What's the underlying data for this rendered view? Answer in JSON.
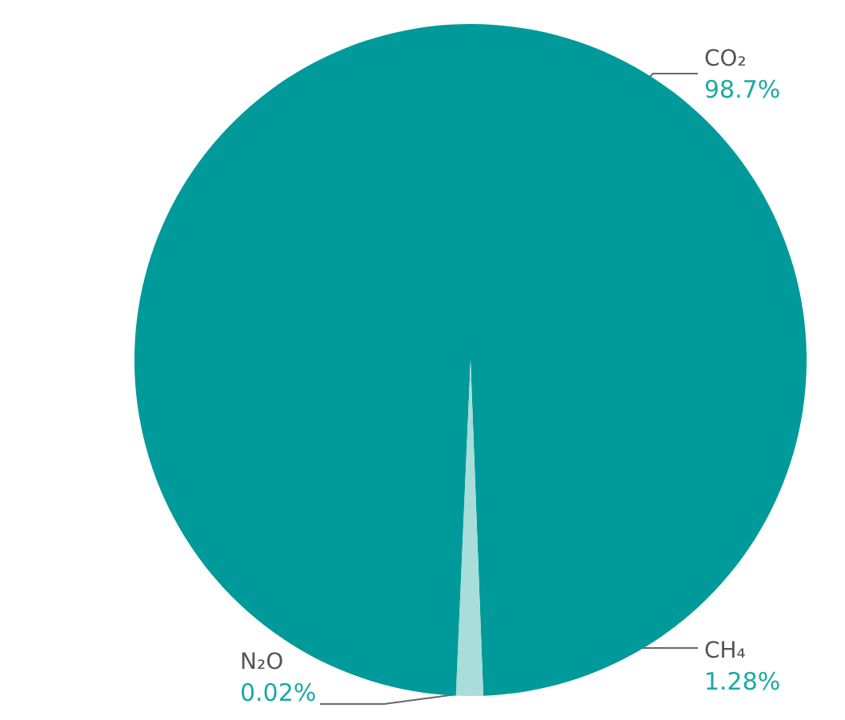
{
  "chart_data": {
    "type": "pie",
    "categories": [
      "CO₂",
      "CH₄",
      "N₂O"
    ],
    "values": [
      98.7,
      1.28,
      0.02
    ],
    "value_labels": [
      "98.7%",
      "1.28%",
      "0.02%"
    ],
    "colors": [
      "#009a9a",
      "#a9ddd9",
      "#5fbfb8"
    ],
    "legend": false
  }
}
